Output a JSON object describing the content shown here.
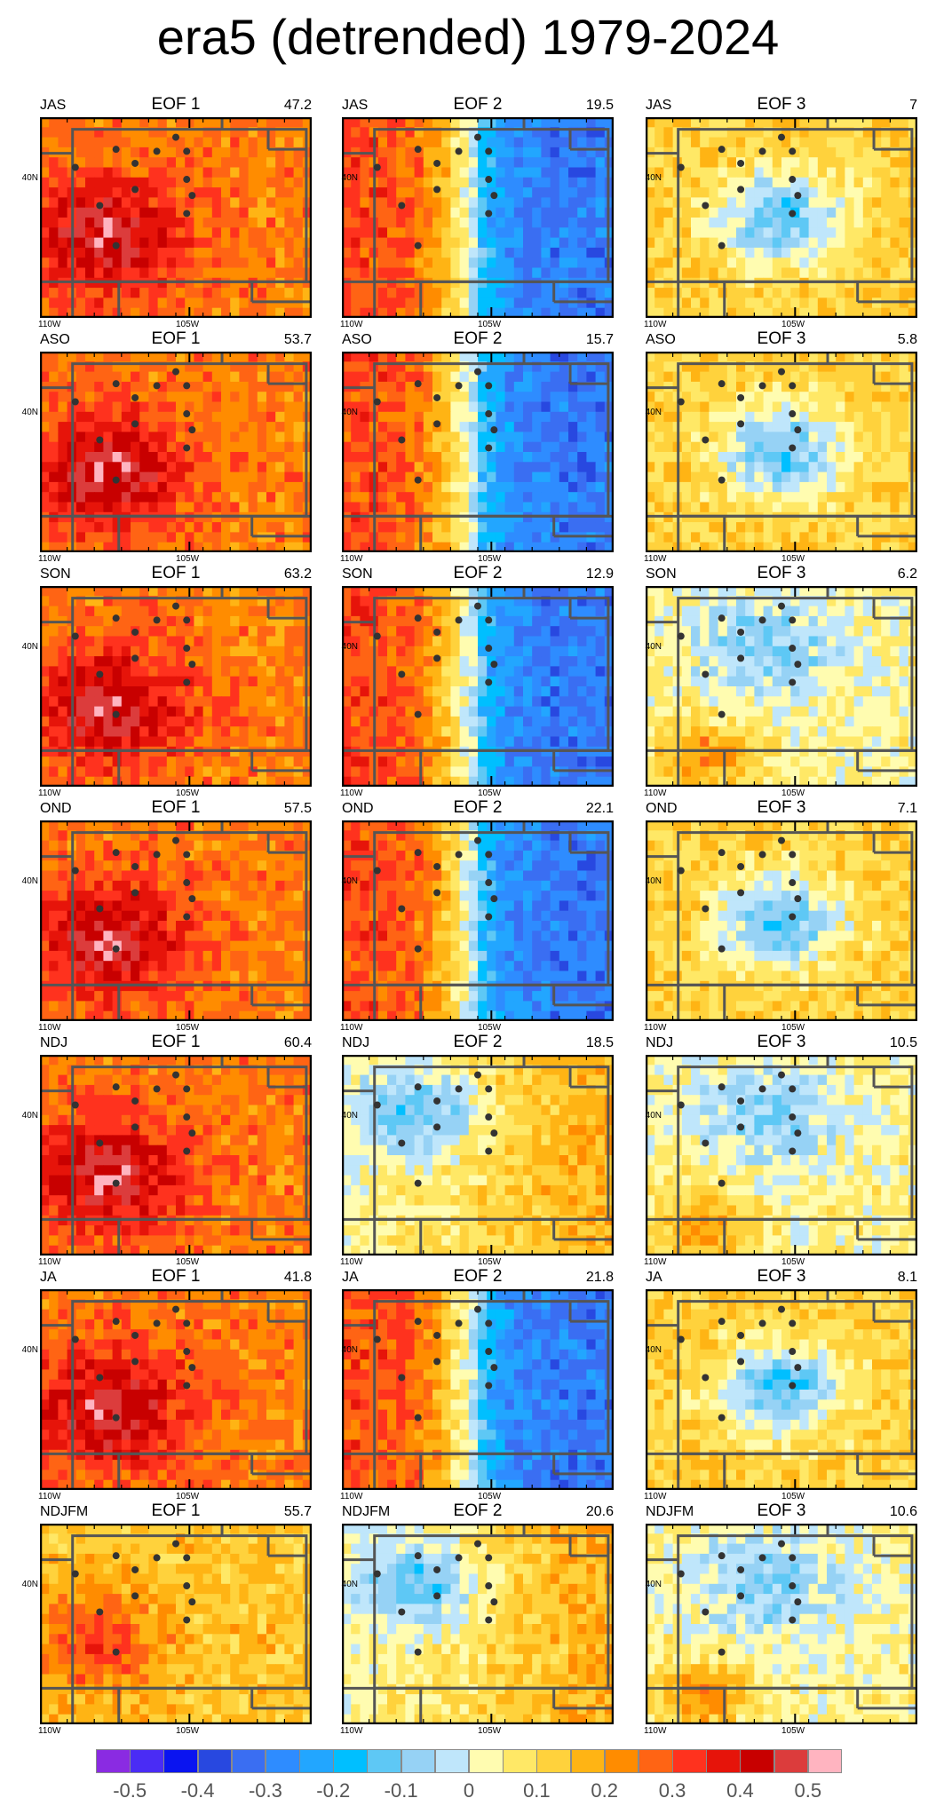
{
  "title": "era5 (detrended) 1979-2024",
  "eof_labels": [
    "EOF 1",
    "EOF 2",
    "EOF 3"
  ],
  "axis_labels": {
    "lat": "40N",
    "lon_left": "110W",
    "lon_mid": "105W"
  },
  "rows": [
    {
      "season": "JAS",
      "pct": [
        "47.2",
        "19.5",
        "7"
      ]
    },
    {
      "season": "ASO",
      "pct": [
        "53.7",
        "15.7",
        "5.8"
      ]
    },
    {
      "season": "SON",
      "pct": [
        "63.2",
        "12.9",
        "6.2"
      ]
    },
    {
      "season": "OND",
      "pct": [
        "57.5",
        "22.1",
        "7.1"
      ]
    },
    {
      "season": "NDJ",
      "pct": [
        "60.4",
        "18.5",
        "10.5"
      ]
    },
    {
      "season": "JA",
      "pct": [
        "41.8",
        "21.8",
        "8.1"
      ]
    },
    {
      "season": "NDJFM",
      "pct": [
        "55.7",
        "20.6",
        "10.6"
      ]
    }
  ],
  "colorbar": {
    "colors": [
      "#8a2be2",
      "#4a2cf5",
      "#0a14f0",
      "#2848e0",
      "#3a6ef2",
      "#2e8cff",
      "#22a6ff",
      "#00bfff",
      "#5ec8f5",
      "#96d2f5",
      "#bfe6fb",
      "#fffcb0",
      "#ffe866",
      "#ffd23c",
      "#ffb414",
      "#ff8c00",
      "#ff6414",
      "#ff321e",
      "#e6140a",
      "#c80000",
      "#dc3c3c",
      "#ffb4c0"
    ],
    "labels": [
      "-0.5",
      "-0.4",
      "-0.3",
      "-0.2",
      "-0.1",
      "0",
      "0.1",
      "0.2",
      "0.3",
      "0.4",
      "0.5"
    ]
  },
  "pattern_levels": {
    "eof1": [
      "strong-positive",
      "strong-positive",
      "strong-positive",
      "strong-positive",
      "strong-positive",
      "strong-positive",
      "moderate-positive"
    ],
    "eof2": [
      "west-positive-east-negative",
      "west-positive-east-negative",
      "west-positive-east-negative",
      "west-positive-east-negative",
      "west-negative-east-positive",
      "west-positive-east-negative",
      "west-negative-east-positive"
    ],
    "eof3": [
      "center-negative",
      "center-negative",
      "north-negative",
      "center-negative",
      "north-negative",
      "center-negative",
      "north-negative"
    ]
  }
}
